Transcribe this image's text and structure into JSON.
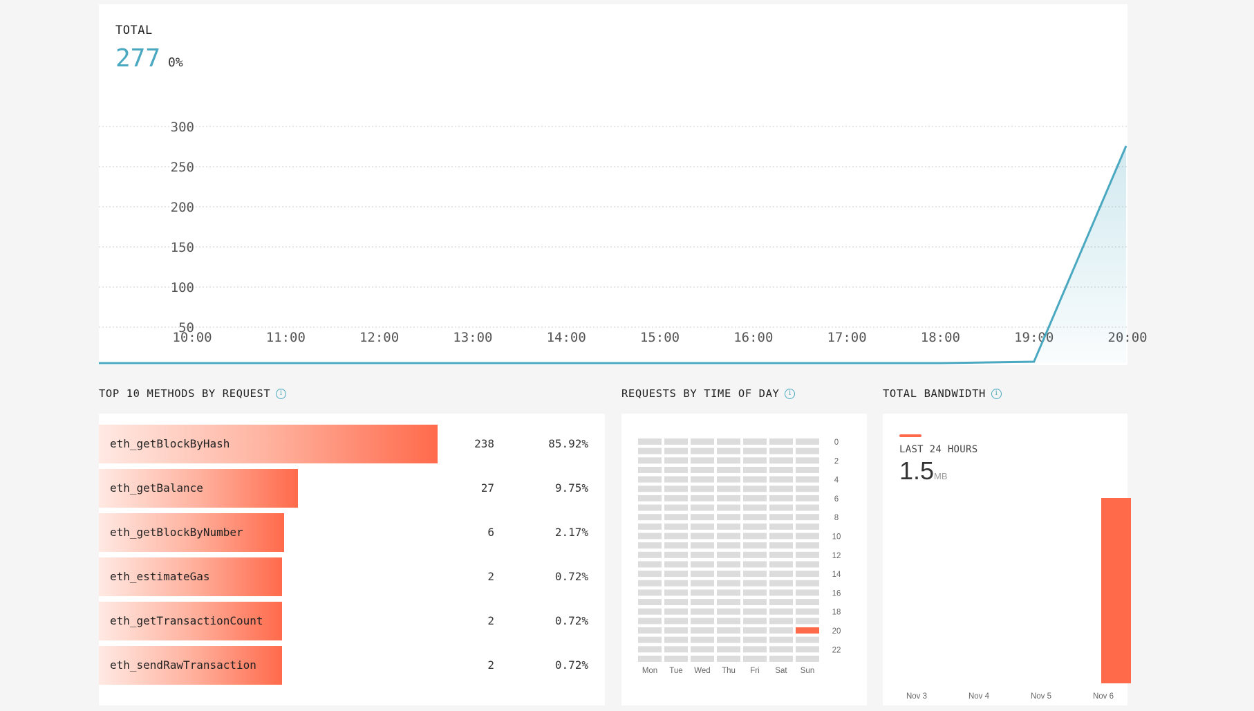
{
  "total": {
    "label": "TOTAL",
    "value": "277",
    "change": "0%"
  },
  "chart_data": {
    "type": "area",
    "title": "",
    "x": [
      "10:00",
      "11:00",
      "12:00",
      "13:00",
      "14:00",
      "15:00",
      "16:00",
      "17:00",
      "18:00",
      "19:00",
      "20:00"
    ],
    "y": [
      0,
      0,
      0,
      0,
      0,
      0,
      0,
      0,
      0,
      2,
      277
    ],
    "y_ticks": [
      "50",
      "100",
      "150",
      "200",
      "250",
      "300"
    ],
    "ylim": [
      0,
      300
    ],
    "color": "#4aa8c0",
    "grid": true
  },
  "methods": {
    "title": "TOP 10 METHODS BY REQUEST",
    "rows": [
      {
        "name": "eth_getBlockByHash",
        "count": "238",
        "pct": "85.92%",
        "fraction": 0.9193
      },
      {
        "name": "eth_getBalance",
        "count": "27",
        "pct": "9.75%",
        "fraction": 0.5414
      },
      {
        "name": "eth_getBlockByNumber",
        "count": "6",
        "pct": "2.17%",
        "fraction": 0.5035
      },
      {
        "name": "eth_estimateGas",
        "count": "2",
        "pct": "0.72%",
        "fraction": 0.4968
      },
      {
        "name": "eth_getTransactionCount",
        "count": "2",
        "pct": "0.72%",
        "fraction": 0.4968
      },
      {
        "name": "eth_sendRawTransaction",
        "count": "2",
        "pct": "0.72%",
        "fraction": 0.4968
      }
    ]
  },
  "time_of_day": {
    "title": "REQUESTS BY TIME OF DAY",
    "days": [
      "Mon",
      "Tue",
      "Wed",
      "Thu",
      "Fri",
      "Sat",
      "Sun"
    ],
    "hour_labels": [
      "0",
      "2",
      "4",
      "6",
      "8",
      "10",
      "12",
      "14",
      "16",
      "18",
      "20",
      "22"
    ],
    "active_cells": [
      {
        "day": 6,
        "hour": 20
      }
    ],
    "active_color": "#ff6a4b",
    "inactive_color": "#dcdcdc"
  },
  "bandwidth": {
    "title": "TOTAL BANDWIDTH",
    "legend": "LAST 24 HOURS",
    "value": "1.5",
    "unit": "MB",
    "dates": [
      "Nov 3",
      "Nov 4",
      "Nov 5",
      "Nov 6"
    ],
    "values": [
      0,
      0,
      0,
      1.5
    ],
    "color": "#ff6a4b"
  }
}
